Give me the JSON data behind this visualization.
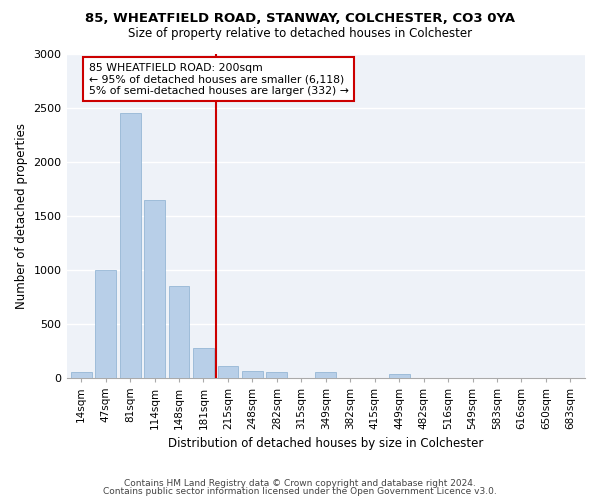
{
  "title1": "85, WHEATFIELD ROAD, STANWAY, COLCHESTER, CO3 0YA",
  "title2": "Size of property relative to detached houses in Colchester",
  "xlabel": "Distribution of detached houses by size in Colchester",
  "ylabel": "Number of detached properties",
  "categories": [
    "14sqm",
    "47sqm",
    "81sqm",
    "114sqm",
    "148sqm",
    "181sqm",
    "215sqm",
    "248sqm",
    "282sqm",
    "315sqm",
    "349sqm",
    "382sqm",
    "415sqm",
    "449sqm",
    "482sqm",
    "516sqm",
    "549sqm",
    "583sqm",
    "616sqm",
    "650sqm",
    "683sqm"
  ],
  "values": [
    50,
    1000,
    2450,
    1650,
    850,
    270,
    110,
    60,
    50,
    0,
    50,
    0,
    0,
    30,
    0,
    0,
    0,
    0,
    0,
    0,
    0
  ],
  "bar_color": "#b8cfe8",
  "bar_edge_color": "#8aafd0",
  "vline_x_index": 5.5,
  "vline_color": "#cc0000",
  "annotation_text": "85 WHEATFIELD ROAD: 200sqm\n← 95% of detached houses are smaller (6,118)\n5% of semi-detached houses are larger (332) →",
  "annotation_box_color": "#cc0000",
  "footer1": "Contains HM Land Registry data © Crown copyright and database right 2024.",
  "footer2": "Contains public sector information licensed under the Open Government Licence v3.0.",
  "background_color": "#eef2f8",
  "ylim": [
    0,
    3000
  ],
  "yticks": [
    0,
    500,
    1000,
    1500,
    2000,
    2500,
    3000
  ]
}
